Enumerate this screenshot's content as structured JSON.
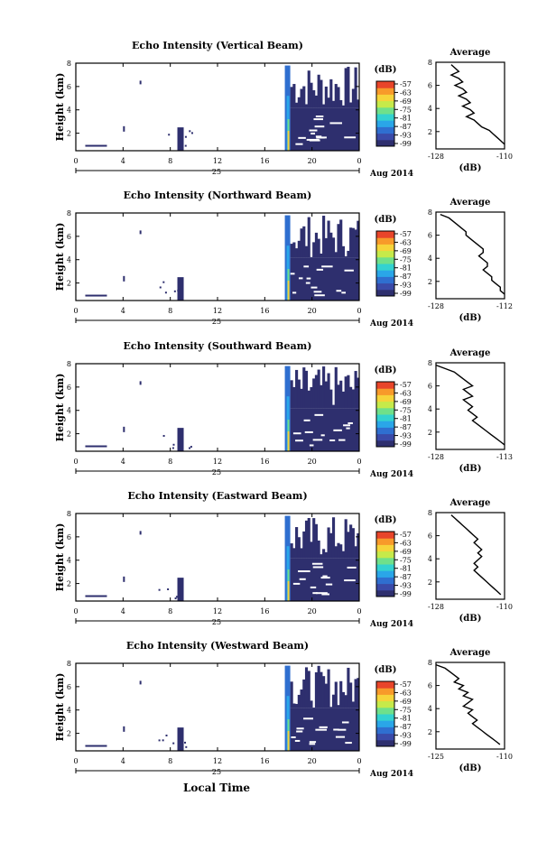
{
  "figure": {
    "xlabel": "Local Time",
    "month_label": "Aug 2014",
    "day_label": "25"
  },
  "colorbar": {
    "unit": "(dB)",
    "ticks": [
      "-57",
      "-63",
      "-69",
      "-75",
      "-81",
      "-87",
      "-93",
      "-99"
    ],
    "colors": [
      "#2e2f6e",
      "#3a4aa8",
      "#2f6fd0",
      "#2aa6e8",
      "#33d2d0",
      "#6fe08a",
      "#c6ea4a",
      "#f6d43a",
      "#f79a2a",
      "#e8452a"
    ]
  },
  "chart_data": [
    {
      "type": "heatmap",
      "title": "Echo Intensity (Vertical Beam)",
      "ylabel": "Height (km)",
      "x_ticks": [
        "0",
        "4",
        "8",
        "12",
        "16",
        "20",
        "0"
      ],
      "xlim": [
        0,
        24
      ],
      "ylim": [
        0.5,
        8
      ],
      "y_ticks": [
        "2",
        "4",
        "6",
        "8"
      ],
      "echo_start_hour": 17.7,
      "average": {
        "title": "Average",
        "xlabel": "(dB)",
        "x_ticks": [
          "-128",
          "-110"
        ],
        "xlim": [
          -128,
          -110
        ],
        "y_ticks": [
          "2",
          "4",
          "6",
          "8"
        ],
        "x": [
          -124,
          -123,
          -122,
          -124,
          -122,
          -121,
          -123,
          -121,
          -120,
          -122,
          -120,
          -119,
          -121,
          -119,
          -118,
          -120,
          -118,
          -117,
          -116,
          -114,
          -113,
          -112,
          -111,
          -110
        ],
        "y": [
          7.8,
          7.5,
          7.2,
          6.9,
          6.6,
          6.3,
          6.0,
          5.7,
          5.4,
          5.1,
          4.8,
          4.5,
          4.2,
          3.9,
          3.6,
          3.3,
          3.0,
          2.7,
          2.4,
          2.1,
          1.8,
          1.5,
          1.2,
          0.9
        ]
      }
    },
    {
      "type": "heatmap",
      "title": "Echo Intensity (Northward Beam)",
      "ylabel": "Height (km)",
      "x_ticks": [
        "0",
        "4",
        "8",
        "12",
        "16",
        "20",
        "0"
      ],
      "xlim": [
        0,
        24
      ],
      "ylim": [
        0.5,
        8
      ],
      "y_ticks": [
        "2",
        "4",
        "6",
        "8"
      ],
      "echo_start_hour": 17.7,
      "average": {
        "title": "Average",
        "xlabel": "(dB)",
        "x_ticks": [
          "-128",
          "-112"
        ],
        "xlim": [
          -128,
          -112
        ],
        "y_ticks": [
          "2",
          "4",
          "6",
          "8"
        ],
        "x": [
          -127,
          -125,
          -124,
          -123,
          -122,
          -121,
          -121,
          -120,
          -119,
          -118,
          -117,
          -117,
          -118,
          -117,
          -116,
          -116,
          -117,
          -116,
          -115,
          -115,
          -114,
          -113,
          -113,
          -112
        ],
        "y": [
          7.8,
          7.5,
          7.2,
          6.9,
          6.6,
          6.3,
          6.0,
          5.7,
          5.4,
          5.1,
          4.8,
          4.5,
          4.2,
          3.9,
          3.6,
          3.3,
          3.0,
          2.7,
          2.4,
          2.1,
          1.8,
          1.5,
          1.2,
          0.9
        ]
      }
    },
    {
      "type": "heatmap",
      "title": "Echo Intensity (Southward Beam)",
      "ylabel": "Height (km)",
      "x_ticks": [
        "0",
        "4",
        "8",
        "12",
        "16",
        "20",
        "0"
      ],
      "xlim": [
        0,
        24
      ],
      "ylim": [
        0.5,
        8
      ],
      "y_ticks": [
        "2",
        "4",
        "6",
        "8"
      ],
      "echo_start_hour": 17.7,
      "average": {
        "title": "Average",
        "xlabel": "(dB)",
        "x_ticks": [
          "-128",
          "-113"
        ],
        "xlim": [
          -128,
          -113
        ],
        "y_ticks": [
          "2",
          "4",
          "6",
          "8"
        ],
        "x": [
          -128,
          -126,
          -124,
          -123,
          -122,
          -121,
          -120,
          -122,
          -121,
          -120,
          -122,
          -121,
          -120,
          -121,
          -120,
          -119,
          -120,
          -119,
          -118,
          -117,
          -116,
          -115,
          -114,
          -113
        ],
        "y": [
          7.8,
          7.5,
          7.2,
          6.9,
          6.6,
          6.3,
          6.0,
          5.7,
          5.4,
          5.1,
          4.8,
          4.5,
          4.2,
          3.9,
          3.6,
          3.3,
          3.0,
          2.7,
          2.4,
          2.1,
          1.8,
          1.5,
          1.2,
          0.9
        ]
      }
    },
    {
      "type": "heatmap",
      "title": "Echo Intensity (Eastward Beam)",
      "ylabel": "Height (km)",
      "x_ticks": [
        "0",
        "4",
        "8",
        "12",
        "16",
        "20",
        "0"
      ],
      "xlim": [
        0,
        24
      ],
      "ylim": [
        0.5,
        8
      ],
      "y_ticks": [
        "2",
        "4",
        "6",
        "8"
      ],
      "echo_start_hour": 17.7,
      "average": {
        "title": "Average",
        "xlabel": "(dB)",
        "x_ticks": [
          "-128",
          "-110"
        ],
        "xlim": [
          -128,
          -110
        ],
        "y_ticks": [
          "2",
          "4",
          "6",
          "8"
        ],
        "x": [
          -124,
          -123,
          -122,
          -121,
          -120,
          -119,
          -118,
          -117,
          -118,
          -117,
          -116,
          -117,
          -116,
          -117,
          -118,
          -117,
          -118,
          -117,
          -116,
          -115,
          -114,
          -113,
          -112,
          -111
        ],
        "y": [
          7.8,
          7.5,
          7.2,
          6.9,
          6.6,
          6.3,
          6.0,
          5.7,
          5.4,
          5.1,
          4.8,
          4.5,
          4.2,
          3.9,
          3.6,
          3.3,
          3.0,
          2.7,
          2.4,
          2.1,
          1.8,
          1.5,
          1.2,
          0.9
        ]
      }
    },
    {
      "type": "heatmap",
      "title": "Echo Intensity (Westward Beam)",
      "ylabel": "Height (km)",
      "x_ticks": [
        "0",
        "4",
        "8",
        "12",
        "16",
        "20",
        "0"
      ],
      "xlim": [
        0,
        24
      ],
      "ylim": [
        0.5,
        8
      ],
      "y_ticks": [
        "2",
        "4",
        "6",
        "8"
      ],
      "echo_start_hour": 17.7,
      "average": {
        "title": "Average",
        "xlabel": "(dB)",
        "x_ticks": [
          "-125",
          "-110"
        ],
        "xlim": [
          -125,
          -110
        ],
        "y_ticks": [
          "2",
          "4",
          "6",
          "8"
        ],
        "x": [
          -125,
          -123,
          -122,
          -121,
          -120,
          -121,
          -119,
          -120,
          -118,
          -119,
          -117,
          -118,
          -119,
          -117,
          -118,
          -117,
          -116,
          -117,
          -116,
          -115,
          -114,
          -113,
          -112,
          -111
        ],
        "y": [
          7.8,
          7.5,
          7.2,
          6.9,
          6.6,
          6.3,
          6.0,
          5.7,
          5.4,
          5.1,
          4.8,
          4.5,
          4.2,
          3.9,
          3.6,
          3.3,
          3.0,
          2.7,
          2.4,
          2.1,
          1.8,
          1.5,
          1.2,
          0.9
        ]
      }
    }
  ]
}
